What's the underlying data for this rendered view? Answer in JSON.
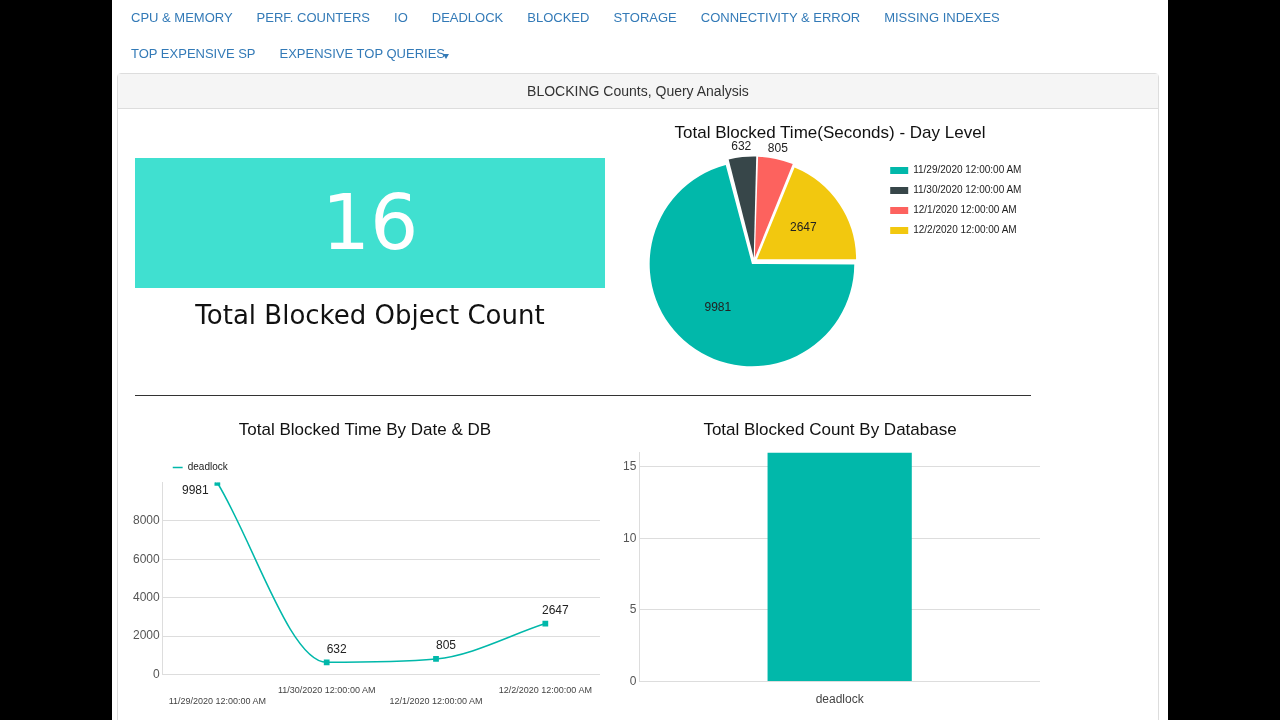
{
  "chart_data": [
    {
      "type": "other",
      "title": "BLOCKING Counts, Query Analysis",
      "annotations": [
        "CPU & MEMORY",
        "PERF. COUNTERS",
        "IO",
        "DEADLOCK",
        "BLOCKED",
        "STORAGE",
        "CONNECTIVITY & ERROR",
        "MISSING INDEXES",
        "TOP EXPENSIVE SP",
        "EXPENSIVE TOP QUERIES"
      ]
    },
    {
      "type": "other",
      "title": "Total Blocked Object Count",
      "annotations": [
        "16"
      ]
    },
    {
      "type": "pie",
      "title": "Total Blocked Time(Seconds) - Day Level",
      "categories": [
        "11/29/2020 12:00:00 AM",
        "11/30/2020 12:00:00 AM",
        "12/1/2020 12:00:00 AM",
        "12/2/2020 12:00:00 AM"
      ],
      "values": [
        9981,
        632,
        805,
        2647
      ],
      "colors": [
        "#01b8aa",
        "#374649",
        "#fd625e",
        "#f2c80f"
      ],
      "data_labels": true,
      "legend": "right"
    },
    {
      "type": "line",
      "title": "Total Blocked Time By Date & DB",
      "categories": [
        "11/29/2020 12:00:00 AM",
        "11/30/2020 12:00:00 AM",
        "12/1/2020 12:00:00 AM",
        "12/2/2020 12:00:00 AM"
      ],
      "series": [
        {
          "name": "deadlock",
          "color": "#01b8aa",
          "values": [
            9981,
            632,
            805,
            2647
          ]
        }
      ],
      "ylim": [
        0,
        10000
      ],
      "yticks": [
        0,
        2000,
        4000,
        6000,
        8000
      ],
      "grid": "y",
      "marker": "square",
      "data_labels": true,
      "legend": "top left"
    },
    {
      "type": "bar",
      "title": "Total Blocked Count By Database",
      "categories": [
        "deadlock"
      ],
      "values": [
        16
      ],
      "color": "#01b8aa",
      "ylim": [
        0,
        16
      ],
      "yticks": [
        0,
        5,
        10,
        15
      ],
      "grid": "y"
    }
  ]
}
